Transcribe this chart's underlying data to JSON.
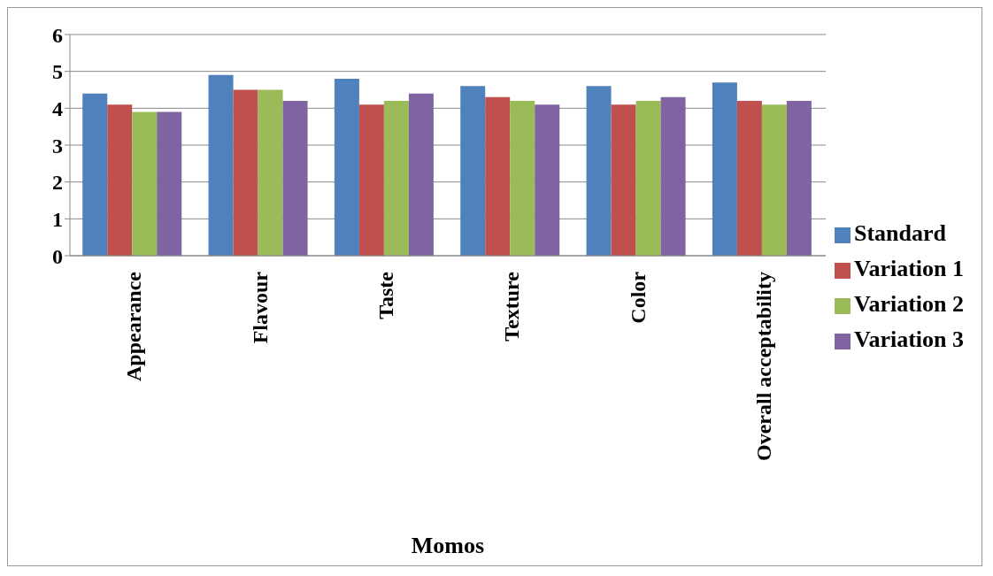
{
  "chart_data": {
    "type": "bar",
    "xlabel": "Momos",
    "categories": [
      "Appearance",
      "Flavour",
      "Taste",
      "Texture",
      "Color",
      "Overall acceptability"
    ],
    "series": [
      {
        "name": "Standard",
        "color": "#4f81bd",
        "values": [
          4.4,
          4.9,
          4.8,
          4.6,
          4.6,
          4.7
        ]
      },
      {
        "name": "Variation 1",
        "color": "#c0504d",
        "values": [
          4.1,
          4.5,
          4.1,
          4.3,
          4.1,
          4.2
        ]
      },
      {
        "name": "Variation 2",
        "color": "#9bbb59",
        "values": [
          3.9,
          4.5,
          4.2,
          4.2,
          4.2,
          4.1
        ]
      },
      {
        "name": "Variation 3",
        "color": "#8064a2",
        "values": [
          3.9,
          4.2,
          4.4,
          4.1,
          4.3,
          4.2
        ]
      }
    ],
    "ylim": [
      0,
      6
    ],
    "yticks": [
      0,
      1,
      2,
      3,
      4,
      5,
      6
    ],
    "grid": "y",
    "legend": "right"
  }
}
